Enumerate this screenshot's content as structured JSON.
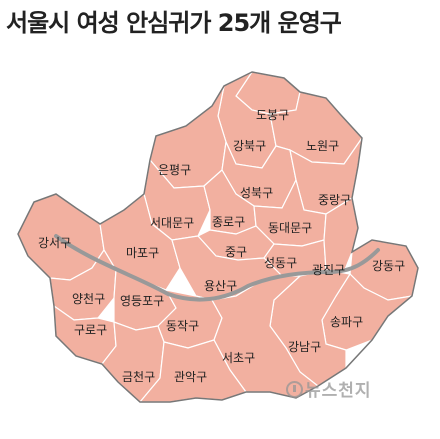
{
  "title": "서울시 여성 안심귀가 25개 운영구",
  "watermark": "뉴스천지",
  "colors": {
    "district_fill": "#f2b0a0",
    "district_border": "#ffffff",
    "outline": "#777777",
    "river": "#999999"
  },
  "districts": [
    {
      "id": "dobong",
      "name": "도봉구"
    },
    {
      "id": "gangbuk",
      "name": "강북구"
    },
    {
      "id": "nowon",
      "name": "노원구"
    },
    {
      "id": "eunpyeong",
      "name": "은평구"
    },
    {
      "id": "seongbuk",
      "name": "성북구"
    },
    {
      "id": "jungnang",
      "name": "중랑구"
    },
    {
      "id": "seodaemun",
      "name": "서대문구"
    },
    {
      "id": "jongno",
      "name": "종로구"
    },
    {
      "id": "dongdaemun",
      "name": "동대문구"
    },
    {
      "id": "gangseo",
      "name": "강서구"
    },
    {
      "id": "mapo",
      "name": "마포구"
    },
    {
      "id": "jung",
      "name": "중구"
    },
    {
      "id": "seongdong",
      "name": "성동구"
    },
    {
      "id": "gwangjin",
      "name": "광진구"
    },
    {
      "id": "gangdong",
      "name": "강동구"
    },
    {
      "id": "yongsan",
      "name": "용산구"
    },
    {
      "id": "yangcheon",
      "name": "양천구"
    },
    {
      "id": "yeongdeungpo",
      "name": "영등포구"
    },
    {
      "id": "guro",
      "name": "구로구"
    },
    {
      "id": "dongjak",
      "name": "동작구"
    },
    {
      "id": "songpa",
      "name": "송파구"
    },
    {
      "id": "gangnam",
      "name": "강남구"
    },
    {
      "id": "seocho",
      "name": "서초구"
    },
    {
      "id": "geumcheon",
      "name": "금천구"
    },
    {
      "id": "gwanak",
      "name": "관악구"
    }
  ]
}
